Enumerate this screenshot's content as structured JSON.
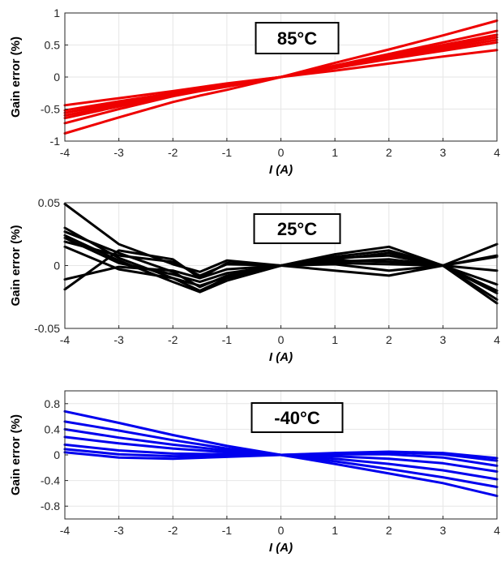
{
  "chart_data": [
    {
      "type": "line",
      "title": "",
      "annotation": "85°C",
      "xlabel": "I (A)",
      "ylabel": "Gain error (%)",
      "xlim": [
        -4,
        4
      ],
      "ylim": [
        -1,
        1
      ],
      "xticks": [
        -4,
        -3,
        -2,
        -1,
        0,
        1,
        2,
        3,
        4
      ],
      "yticks": [
        -1,
        -0.5,
        0,
        0.5,
        1
      ],
      "ytick_labels": [
        "-1",
        "-0.5",
        "0",
        "0.5",
        "1"
      ],
      "grid": true,
      "color": "#ee0000",
      "x": [
        -4,
        -3,
        -2,
        -1.5,
        -1,
        0,
        1,
        2,
        3,
        4
      ],
      "series": [
        {
          "values": [
            -0.88,
            -0.63,
            -0.39,
            -0.29,
            -0.2,
            0,
            0.22,
            0.43,
            0.65,
            0.88
          ]
        },
        {
          "values": [
            -0.72,
            -0.5,
            -0.3,
            -0.22,
            -0.15,
            0,
            0.18,
            0.36,
            0.54,
            0.72
          ]
        },
        {
          "values": [
            -0.64,
            -0.46,
            -0.29,
            -0.21,
            -0.14,
            0,
            0.17,
            0.34,
            0.5,
            0.66
          ]
        },
        {
          "values": [
            -0.6,
            -0.44,
            -0.28,
            -0.2,
            -0.13,
            0,
            0.16,
            0.32,
            0.47,
            0.62
          ]
        },
        {
          "values": [
            -0.56,
            -0.41,
            -0.26,
            -0.19,
            -0.12,
            0,
            0.15,
            0.3,
            0.44,
            0.58
          ]
        },
        {
          "values": [
            -0.52,
            -0.38,
            -0.25,
            -0.18,
            -0.11,
            0,
            0.14,
            0.28,
            0.41,
            0.54
          ]
        },
        {
          "values": [
            -0.44,
            -0.33,
            -0.22,
            -0.16,
            -0.1,
            0,
            0.1,
            0.21,
            0.32,
            0.42
          ]
        }
      ]
    },
    {
      "type": "line",
      "title": "",
      "annotation": "25°C",
      "xlabel": "I (A)",
      "ylabel": "Gain error (%)",
      "xlim": [
        -4,
        4
      ],
      "ylim": [
        -0.05,
        0.05
      ],
      "xticks": [
        -4,
        -3,
        -2,
        -1,
        0,
        1,
        2,
        3,
        4
      ],
      "yticks": [
        -0.05,
        0,
        0.05
      ],
      "ytick_labels": [
        "-0.05",
        "0",
        "0.05"
      ],
      "grid": true,
      "color": "#000000",
      "x": [
        -4,
        -3,
        -2,
        -1.5,
        -1,
        0,
        1,
        2,
        3,
        4
      ],
      "series": [
        {
          "values": [
            0.049,
            0.017,
            0.001,
            -0.005,
            0.004,
            0,
            -0.004,
            -0.008,
            0,
            0.017
          ]
        },
        {
          "values": [
            0.03,
            0.006,
            -0.01,
            -0.02,
            -0.01,
            0,
            0.005,
            0.01,
            0,
            -0.03
          ]
        },
        {
          "values": [
            0.027,
            0.01,
            -0.005,
            -0.017,
            -0.008,
            0,
            0.009,
            0.015,
            0,
            -0.022
          ]
        },
        {
          "values": [
            0.024,
            0.004,
            -0.013,
            -0.021,
            -0.012,
            0,
            0.007,
            0.012,
            0,
            -0.027
          ]
        },
        {
          "values": [
            0.022,
            0.002,
            -0.007,
            -0.013,
            -0.006,
            0,
            0.003,
            0.005,
            0,
            -0.015
          ]
        },
        {
          "values": [
            0.019,
            0.008,
            0.003,
            -0.008,
            0.001,
            0,
            0.004,
            0.003,
            0,
            -0.004
          ]
        },
        {
          "values": [
            -0.019,
            0.012,
            0.005,
            -0.01,
            0.002,
            0,
            0.001,
            -0.004,
            0,
            0.007
          ]
        },
        {
          "values": [
            -0.011,
            -0.001,
            -0.004,
            -0.01,
            -0.003,
            0,
            0.006,
            0.008,
            0,
            0.008
          ]
        },
        {
          "values": [
            0.015,
            -0.003,
            -0.01,
            -0.016,
            -0.009,
            0,
            0.002,
            0.001,
            0,
            -0.02
          ]
        }
      ]
    },
    {
      "type": "line",
      "title": "",
      "annotation": "-40°C",
      "xlabel": "I (A)",
      "ylabel": "Gain error (%)",
      "xlim": [
        -4,
        4
      ],
      "ylim": [
        -1,
        1
      ],
      "xticks": [
        -4,
        -3,
        -2,
        -1,
        0,
        1,
        2,
        3,
        4
      ],
      "yticks": [
        -0.8,
        -0.4,
        0,
        0.4,
        0.8
      ],
      "ytick_labels": [
        "-0.8",
        "-0.4",
        "0",
        "0.4",
        "0.8"
      ],
      "grid": true,
      "color": "#0000ee",
      "x": [
        -4,
        -3,
        -2,
        -1,
        0,
        1,
        2,
        3,
        4
      ],
      "series": [
        {
          "values": [
            0.68,
            0.5,
            0.31,
            0.14,
            0,
            -0.14,
            -0.29,
            -0.44,
            -0.64
          ]
        },
        {
          "values": [
            0.52,
            0.38,
            0.23,
            0.1,
            0,
            -0.1,
            -0.22,
            -0.35,
            -0.5
          ]
        },
        {
          "values": [
            0.4,
            0.27,
            0.16,
            0.07,
            0,
            -0.06,
            -0.14,
            -0.24,
            -0.38
          ]
        },
        {
          "values": [
            0.28,
            0.18,
            0.1,
            0.04,
            0,
            -0.02,
            -0.06,
            -0.13,
            -0.26
          ]
        },
        {
          "values": [
            0.16,
            0.07,
            0.02,
            0.01,
            0,
            0.01,
            0.01,
            -0.04,
            -0.17
          ]
        },
        {
          "values": [
            0.09,
            0.01,
            -0.02,
            -0.01,
            0,
            0.02,
            0.04,
            0.01,
            -0.09
          ]
        },
        {
          "values": [
            0.04,
            -0.04,
            -0.06,
            -0.03,
            0,
            0.03,
            0.05,
            0.03,
            -0.05
          ]
        }
      ]
    }
  ]
}
